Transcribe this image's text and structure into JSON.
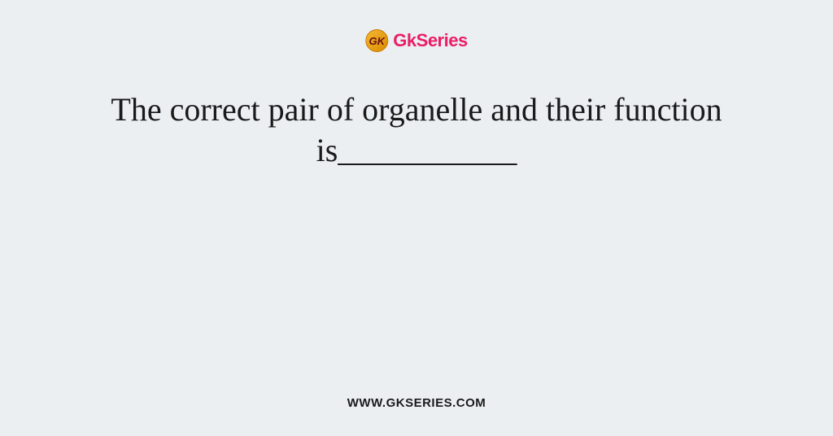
{
  "logo": {
    "icon_text": "GK",
    "brand_text": "GkSeries",
    "icon_bg_start": "#f7b733",
    "icon_bg_end": "#d88c00",
    "brand_color": "#e91e63"
  },
  "question": {
    "text": "The correct pair of organelle and their function is___________",
    "fontsize": 40,
    "color": "#1a1a1a"
  },
  "footer": {
    "url": "WWW.GKSERIES.COM",
    "color": "#1a1a1a"
  },
  "background_color": "#eceff2"
}
